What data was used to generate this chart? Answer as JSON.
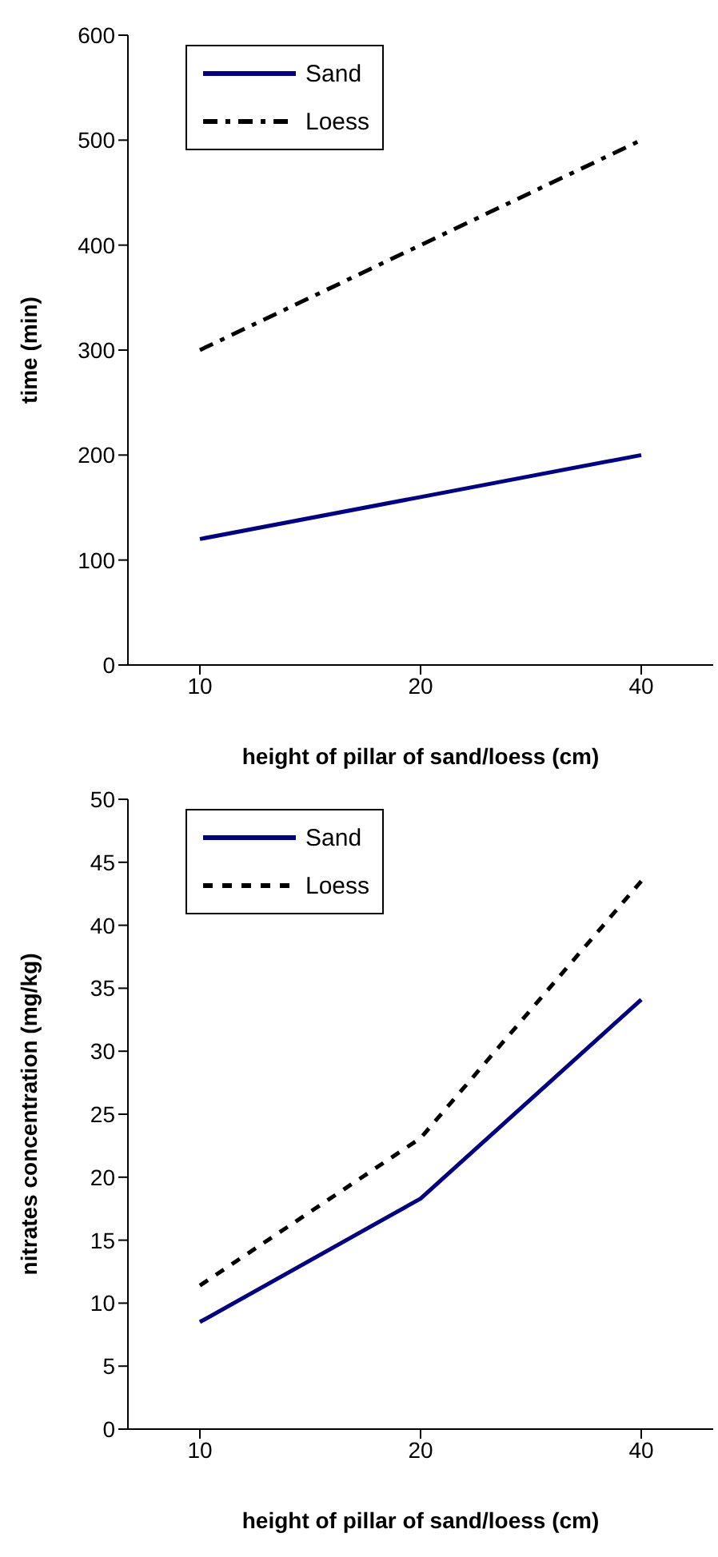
{
  "chart_data": [
    {
      "type": "line",
      "xlabel": "height of pillar of sand/loess (cm)",
      "ylabel": "time (min)",
      "categories": [
        "10",
        "20",
        "40"
      ],
      "ylim": [
        0,
        600
      ],
      "yticks": [
        0,
        100,
        200,
        300,
        400,
        500,
        600
      ],
      "grid": false,
      "legend": "top left",
      "marker": "none",
      "series": [
        {
          "name": "Sand",
          "color": "#000080",
          "line_style": "solid",
          "values": [
            120,
            160,
            200
          ]
        },
        {
          "name": "Loess",
          "color": "#000000",
          "line_style": "dashed",
          "values": [
            300,
            400,
            500
          ]
        }
      ]
    },
    {
      "type": "line",
      "xlabel": "height of pillar of sand/loess (cm)",
      "ylabel": "nitrates concentration (mg/kg)",
      "categories": [
        "10",
        "20",
        "40"
      ],
      "ylim": [
        0,
        50
      ],
      "yticks": [
        0,
        5,
        10,
        15,
        20,
        25,
        30,
        35,
        40,
        45,
        50
      ],
      "grid": false,
      "legend": "top left",
      "marker": "none",
      "series": [
        {
          "name": "Sand",
          "color": "#000080",
          "line_style": "solid",
          "values": [
            8.5,
            18.3,
            34.1
          ]
        },
        {
          "name": "Loess",
          "color": "#000000",
          "line_style": "dotted",
          "values": [
            11.4,
            23.1,
            43.5
          ]
        }
      ]
    }
  ]
}
